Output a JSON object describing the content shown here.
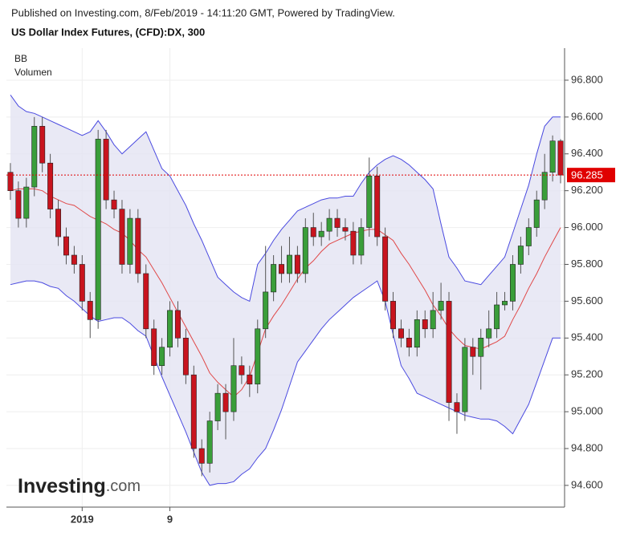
{
  "chart_data": {
    "type": "candlestick",
    "subtitle": "Published on Investing.com, 8/Feb/2019 - 14:11:20 GMT, Powered by TradingView.",
    "title": "US Dollar Index Futures, (CFD):DX, 300",
    "legend": [
      "BB",
      "Volumen"
    ],
    "watermark": [
      "Investing",
      ".com"
    ],
    "categories": [
      null,
      null,
      null,
      null,
      null,
      null,
      null,
      null,
      null,
      "2019",
      null,
      null,
      null,
      null,
      null,
      null,
      null,
      null,
      null,
      null,
      "9",
      null,
      null,
      null,
      null,
      null,
      null,
      null,
      null,
      null,
      null,
      null,
      null,
      null,
      null,
      null,
      null,
      null,
      null,
      null,
      null,
      null,
      null,
      null,
      null,
      null,
      null,
      null,
      null,
      null,
      null,
      null,
      null,
      null,
      null,
      null,
      null,
      null,
      null,
      null,
      null,
      null,
      null,
      null,
      null,
      null,
      null,
      null,
      null,
      null
    ],
    "open": [
      96.3,
      96.2,
      96.05,
      96.22,
      96.55,
      96.35,
      96.1,
      95.95,
      95.85,
      95.8,
      95.6,
      95.5,
      96.48,
      96.15,
      96.1,
      95.8,
      96.05,
      95.75,
      95.45,
      95.25,
      95.35,
      95.55,
      95.4,
      95.2,
      94.8,
      94.72,
      94.95,
      95.1,
      95.0,
      95.25,
      95.2,
      95.15,
      95.45,
      95.65,
      95.8,
      95.75,
      95.85,
      95.75,
      96.0,
      95.95,
      95.98,
      96.05,
      96.0,
      95.98,
      95.85,
      96.0,
      96.28,
      95.95,
      95.6,
      95.45,
      95.4,
      95.35,
      95.5,
      95.45,
      95.55,
      95.6,
      95.05,
      95.0,
      95.35,
      95.3,
      95.4,
      95.45,
      95.58,
      95.6,
      95.8,
      95.9,
      96.0,
      96.15,
      96.3,
      96.47
    ],
    "high": [
      96.35,
      96.25,
      96.27,
      96.6,
      96.6,
      96.4,
      96.15,
      96.0,
      95.9,
      95.85,
      95.65,
      96.53,
      96.53,
      96.2,
      96.15,
      96.1,
      96.1,
      95.8,
      95.5,
      95.4,
      95.6,
      95.6,
      95.45,
      95.25,
      94.85,
      95.0,
      95.15,
      95.15,
      95.4,
      95.3,
      95.25,
      95.5,
      95.9,
      95.85,
      95.9,
      95.95,
      95.9,
      96.05,
      96.08,
      96.03,
      96.1,
      96.1,
      96.05,
      96.03,
      96.05,
      96.38,
      96.33,
      96.0,
      95.65,
      95.5,
      95.45,
      95.55,
      95.55,
      95.65,
      95.7,
      95.65,
      95.1,
      95.4,
      95.4,
      95.45,
      95.55,
      95.65,
      95.65,
      95.85,
      95.95,
      96.05,
      96.2,
      96.4,
      96.5,
      96.48
    ],
    "low": [
      96.15,
      96.0,
      96.0,
      96.17,
      96.3,
      96.05,
      95.9,
      95.8,
      95.75,
      95.55,
      95.4,
      95.45,
      96.1,
      96.05,
      95.75,
      95.75,
      95.7,
      95.4,
      95.2,
      95.2,
      95.3,
      95.35,
      95.15,
      94.75,
      94.65,
      94.67,
      94.9,
      94.85,
      94.95,
      95.15,
      95.08,
      95.1,
      95.4,
      95.6,
      95.7,
      95.7,
      95.7,
      95.7,
      95.9,
      95.9,
      95.93,
      95.95,
      95.93,
      95.8,
      95.8,
      95.95,
      95.9,
      95.55,
      95.4,
      95.35,
      95.3,
      95.3,
      95.4,
      95.4,
      95.5,
      94.95,
      94.88,
      94.95,
      95.2,
      95.12,
      95.35,
      95.4,
      95.55,
      95.55,
      95.75,
      95.85,
      95.95,
      96.1,
      96.25,
      96.24
    ],
    "close": [
      96.2,
      96.05,
      96.22,
      96.55,
      96.35,
      96.1,
      95.95,
      95.85,
      95.8,
      95.6,
      95.5,
      96.48,
      96.15,
      96.1,
      95.8,
      96.05,
      95.75,
      95.45,
      95.25,
      95.35,
      95.55,
      95.4,
      95.2,
      94.8,
      94.72,
      94.95,
      95.1,
      95.0,
      95.25,
      95.2,
      95.15,
      95.45,
      95.65,
      95.8,
      95.75,
      95.85,
      95.75,
      96.0,
      95.95,
      95.98,
      96.05,
      96.0,
      95.98,
      95.85,
      96.0,
      96.28,
      95.95,
      95.6,
      95.45,
      95.4,
      95.35,
      95.5,
      95.45,
      95.55,
      95.6,
      95.05,
      95.0,
      95.35,
      95.3,
      95.4,
      95.45,
      95.58,
      95.6,
      95.8,
      95.9,
      96.0,
      96.15,
      96.3,
      96.47,
      96.285
    ],
    "up_color": "#3a9e3a",
    "down_color": "#c8141e",
    "bollinger": {
      "upper": [
        96.72,
        96.66,
        96.63,
        96.62,
        96.6,
        96.58,
        96.56,
        96.54,
        96.52,
        96.5,
        96.52,
        96.58,
        96.52,
        96.45,
        96.4,
        96.44,
        96.48,
        96.52,
        96.42,
        96.32,
        96.28,
        96.2,
        96.12,
        96.02,
        95.93,
        95.83,
        95.73,
        95.69,
        95.65,
        95.62,
        95.6,
        95.8,
        95.86,
        95.93,
        95.99,
        96.04,
        96.09,
        96.11,
        96.13,
        96.15,
        96.16,
        96.16,
        96.17,
        96.17,
        96.24,
        96.3,
        96.34,
        96.37,
        96.39,
        96.37,
        96.34,
        96.3,
        96.26,
        96.21,
        96.02,
        95.84,
        95.78,
        95.71,
        95.7,
        95.69,
        95.74,
        95.79,
        95.84,
        95.97,
        96.1,
        96.23,
        96.4,
        96.55,
        96.6,
        96.6
      ],
      "middle": [
        96.2,
        96.21,
        96.21,
        96.21,
        96.2,
        96.17,
        96.15,
        96.13,
        96.12,
        96.09,
        96.06,
        96.04,
        96.02,
        95.99,
        95.97,
        95.93,
        95.88,
        95.84,
        95.77,
        95.7,
        95.62,
        95.54,
        95.46,
        95.38,
        95.3,
        95.21,
        95.16,
        95.12,
        95.08,
        95.12,
        95.19,
        95.32,
        95.45,
        95.52,
        95.58,
        95.65,
        95.72,
        95.78,
        95.82,
        95.87,
        95.91,
        95.93,
        95.95,
        95.97,
        95.98,
        95.99,
        95.99,
        95.96,
        95.93,
        95.86,
        95.8,
        95.73,
        95.66,
        95.58,
        95.52,
        95.45,
        95.4,
        95.36,
        95.35,
        95.34,
        95.36,
        95.38,
        95.41,
        95.5,
        95.58,
        95.67,
        95.75,
        95.84,
        95.92,
        96.0
      ],
      "lower": [
        95.69,
        95.7,
        95.71,
        95.71,
        95.7,
        95.68,
        95.67,
        95.63,
        95.6,
        95.56,
        95.52,
        95.49,
        95.5,
        95.51,
        95.51,
        95.48,
        95.44,
        95.41,
        95.3,
        95.19,
        95.09,
        94.99,
        94.89,
        94.78,
        94.67,
        94.6,
        94.61,
        94.61,
        94.62,
        94.66,
        94.69,
        94.75,
        94.8,
        94.9,
        95.01,
        95.14,
        95.27,
        95.33,
        95.39,
        95.45,
        95.5,
        95.54,
        95.58,
        95.62,
        95.65,
        95.68,
        95.71,
        95.6,
        95.42,
        95.25,
        95.18,
        95.1,
        95.08,
        95.06,
        95.04,
        95.02,
        95.0,
        94.98,
        94.97,
        94.96,
        94.96,
        94.95,
        94.92,
        94.88,
        94.96,
        95.04,
        95.16,
        95.28,
        95.4,
        95.4
      ],
      "color": "#4a4ae0",
      "middle_color": "#e04848",
      "fill": "#e4e4f2"
    },
    "last_price": 96.285,
    "last_price_color": "#e00000",
    "ylim": [
      94.482,
      96.974
    ],
    "yticks": [
      {
        "value": 94.6,
        "label": "94.600"
      },
      {
        "value": 94.8,
        "label": "94.800"
      },
      {
        "value": 95.0,
        "label": "95.000"
      },
      {
        "value": 95.2,
        "label": "95.200"
      },
      {
        "value": 95.4,
        "label": "95.400"
      },
      {
        "value": 95.6,
        "label": "95.600"
      },
      {
        "value": 95.8,
        "label": "95.800"
      },
      {
        "value": 96.0,
        "label": "96.000"
      },
      {
        "value": 96.2,
        "label": "96.200"
      },
      {
        "value": 96.4,
        "label": "96.400"
      },
      {
        "value": 96.6,
        "label": "96.600"
      },
      {
        "value": 96.8,
        "label": "96.800"
      }
    ],
    "grid": true
  }
}
